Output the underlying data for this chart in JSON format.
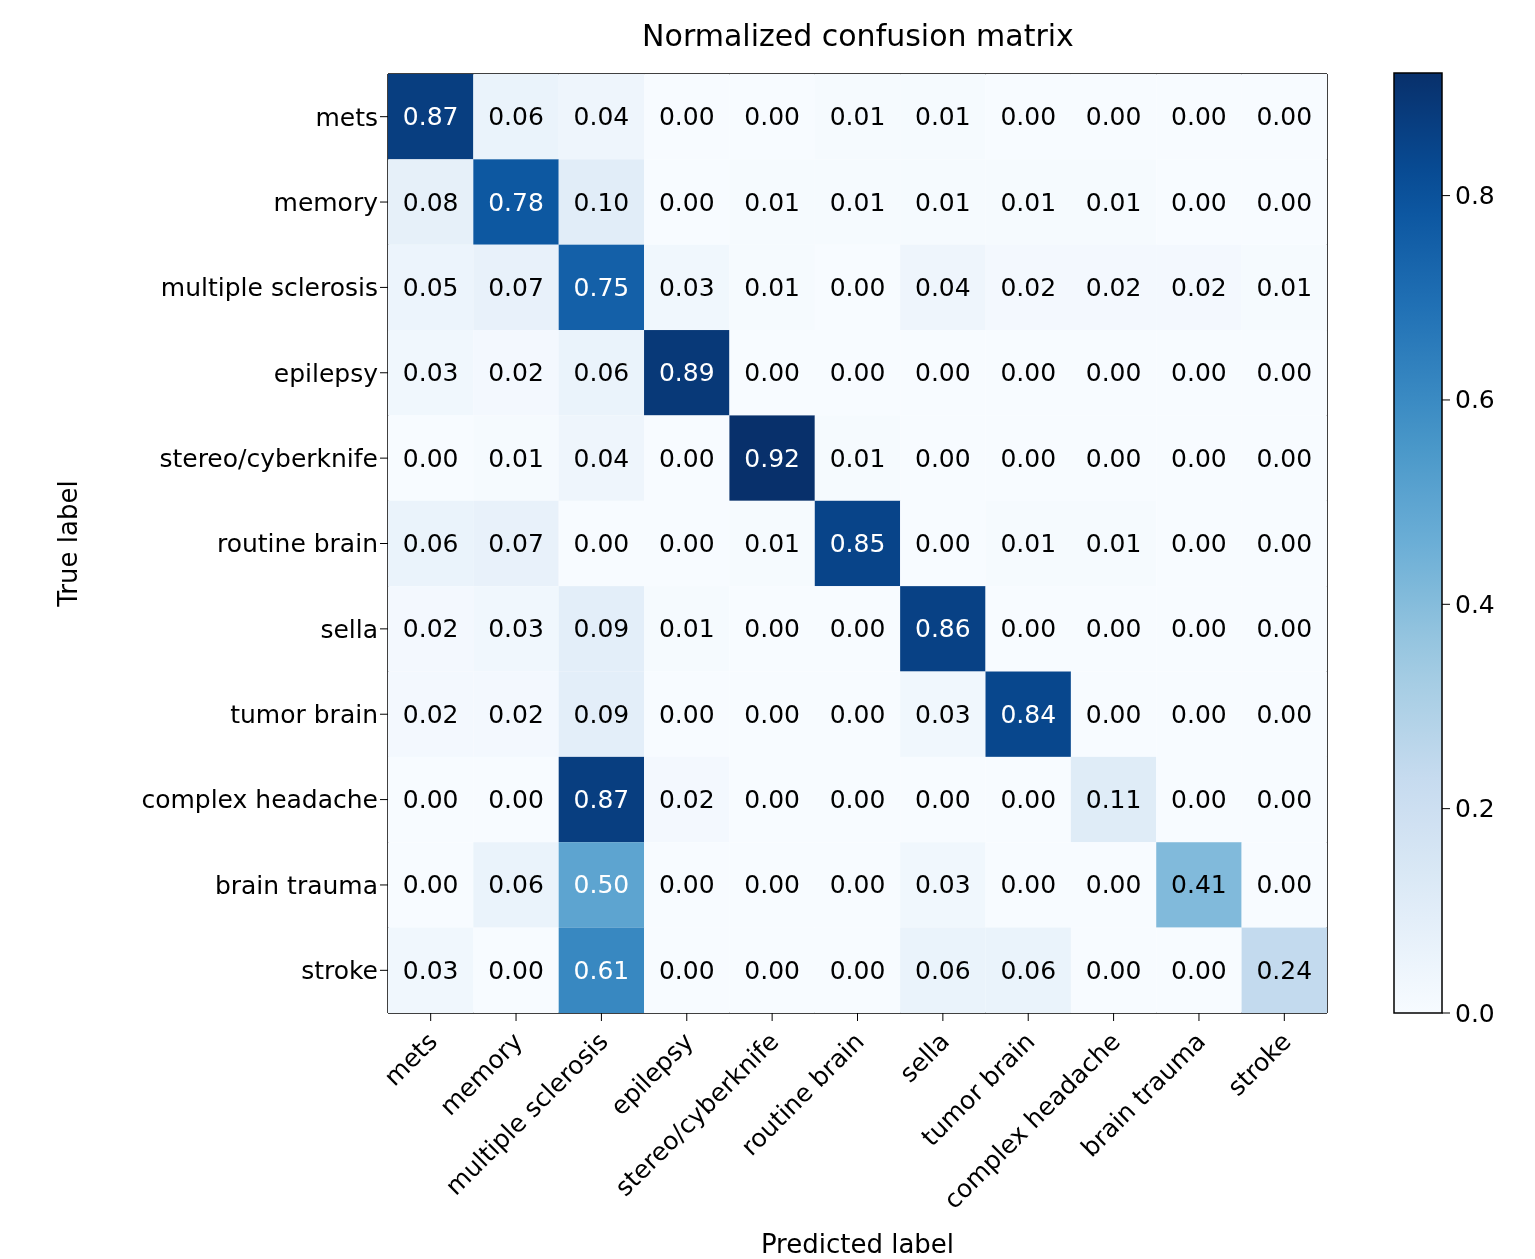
{
  "chart_data": {
    "type": "heatmap",
    "title": "Normalized confusion matrix",
    "xlabel": "Predicted label",
    "ylabel": "True label",
    "categories": [
      "mets",
      "memory",
      "multiple sclerosis",
      "epilepsy",
      "stereo/cyberknife",
      "routine brain",
      "sella",
      "tumor brain",
      "complex headache",
      "brain trauma",
      "stroke"
    ],
    "y_categories": [
      "mets",
      "memory",
      "multiple sclerosis",
      "epilepsy",
      "stereo/cyberknife",
      "routine brain",
      "sella",
      "tumor brain",
      "complex headache",
      "brain trauma",
      "stroke"
    ],
    "cells": [
      [
        0.87,
        0.06,
        0.04,
        0,
        0,
        0.01,
        0.01,
        0,
        0,
        0,
        0
      ],
      [
        0.08,
        0.78,
        0.1,
        0,
        0.01,
        0.01,
        0.01,
        0.01,
        0.01,
        0,
        0
      ],
      [
        0.05,
        0.07,
        0.75,
        0.03,
        0.01,
        0,
        0.04,
        0.02,
        0.02,
        0.02,
        0.01
      ],
      [
        0.03,
        0.02,
        0.06,
        0.89,
        0,
        0,
        0,
        0,
        0,
        0,
        0
      ],
      [
        0,
        0.01,
        0.04,
        0,
        0.92,
        0.01,
        0,
        0,
        0,
        0,
        0
      ],
      [
        0.06,
        0.07,
        0,
        0,
        0.01,
        0.85,
        0,
        0.01,
        0.01,
        0,
        0
      ],
      [
        0.02,
        0.03,
        0.09,
        0.01,
        0,
        0,
        0.86,
        0,
        0,
        0,
        0
      ],
      [
        0.02,
        0.02,
        0.09,
        0,
        0,
        0,
        0.03,
        0.84,
        0,
        0,
        0
      ],
      [
        0,
        0,
        0.87,
        0.02,
        0,
        0,
        0,
        0,
        0.11,
        0,
        0
      ],
      [
        0,
        0.06,
        0.5,
        0,
        0,
        0,
        0.03,
        0,
        0,
        0.41,
        0
      ],
      [
        0.03,
        0,
        0.61,
        0,
        0,
        0,
        0.06,
        0.06,
        0,
        0,
        0.24
      ]
    ],
    "cell_labels": [
      [
        "0.87",
        "0.06",
        "0.04",
        "0.00",
        "0.00",
        "0.01",
        "0.01",
        "0.00",
        "0.00",
        "0.00",
        "0.00"
      ],
      [
        "0.08",
        "0.78",
        "0.10",
        "0.00",
        "0.01",
        "0.01",
        "0.01",
        "0.01",
        "0.01",
        "0.00",
        "0.00"
      ],
      [
        "0.05",
        "0.07",
        "0.75",
        "0.03",
        "0.01",
        "0.00",
        "0.04",
        "0.02",
        "0.02",
        "0.02",
        "0.01"
      ],
      [
        "0.03",
        "0.02",
        "0.06",
        "0.89",
        "0.00",
        "0.00",
        "0.00",
        "0.00",
        "0.00",
        "0.00",
        "0.00"
      ],
      [
        "0.00",
        "0.01",
        "0.04",
        "0.00",
        "0.92",
        "0.01",
        "0.00",
        "0.00",
        "0.00",
        "0.00",
        "0.00"
      ],
      [
        "0.06",
        "0.07",
        "0.00",
        "0.00",
        "0.01",
        "0.85",
        "0.00",
        "0.01",
        "0.01",
        "0.00",
        "0.00"
      ],
      [
        "0.02",
        "0.03",
        "0.09",
        "0.01",
        "0.00",
        "0.00",
        "0.86",
        "0.00",
        "0.00",
        "0.00",
        "0.00"
      ],
      [
        "0.02",
        "0.02",
        "0.09",
        "0.00",
        "0.00",
        "0.00",
        "0.03",
        "0.84",
        "0.00",
        "0.00",
        "0.00"
      ],
      [
        "0.00",
        "0.00",
        "0.87",
        "0.02",
        "0.00",
        "0.00",
        "0.00",
        "0.00",
        "0.11",
        "0.00",
        "0.00"
      ],
      [
        "0.00",
        "0.06",
        "0.50",
        "0.00",
        "0.00",
        "0.00",
        "0.03",
        "0.00",
        "0.00",
        "0.41",
        "0.00"
      ],
      [
        "0.03",
        "0.00",
        "0.61",
        "0.00",
        "0.00",
        "0.00",
        "0.06",
        "0.06",
        "0.00",
        "0.00",
        "0.24"
      ]
    ],
    "clim": [
      0,
      0.92
    ],
    "cticks": [
      {
        "value": 0,
        "label": "0.0"
      },
      {
        "value": 0.2,
        "label": "0.2"
      },
      {
        "value": 0.4,
        "label": "0.4"
      },
      {
        "value": 0.6,
        "label": "0.6"
      },
      {
        "value": 0.8,
        "label": "0.8"
      }
    ]
  }
}
